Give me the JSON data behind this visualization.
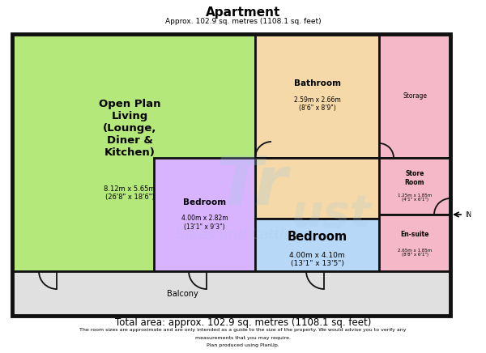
{
  "title": "Apartment",
  "subtitle": "Approx. 102.9 sq. metres (1108.1 sq. feet)",
  "footer_line1": "Total area: approx. 102.9 sq. metres (1108.1 sq. feet)",
  "footer_line2": "The room sizes are approximate and are only intended as a guide to the size of the property. We would advise you to verify any",
  "footer_line3": "measurements that you may require.",
  "footer_line4": "Plan produced using PlanUp.",
  "bg_color": "#ffffff",
  "wall_color": "#111111",
  "green": "#b5e87a",
  "peach": "#f5d9a8",
  "pink": "#f5b8c8",
  "purple": "#d8b4fe",
  "blue": "#b8d8f8",
  "balcony_color": "#e0e0e0"
}
